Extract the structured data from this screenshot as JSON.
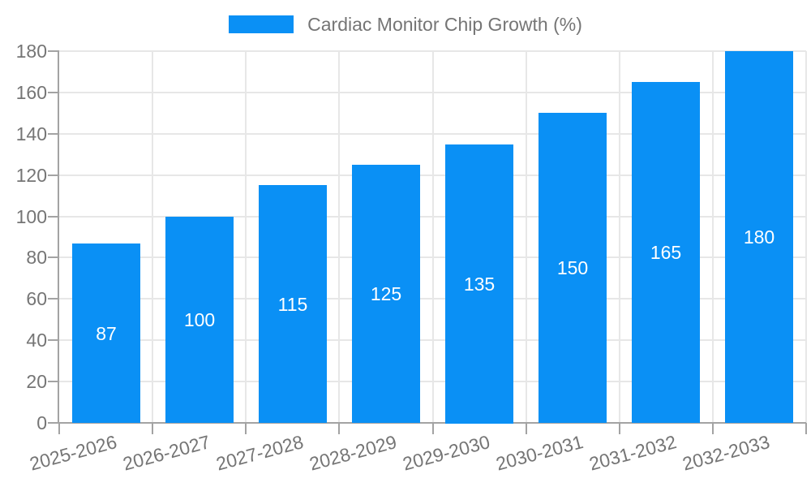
{
  "chart_data": {
    "type": "bar",
    "title": "",
    "legend_label": "Cardiac Monitor Chip Growth (%)",
    "legend_position": "top-center",
    "categories": [
      "2025-2026",
      "2026-2027",
      "2027-2028",
      "2028-2029",
      "2029-2030",
      "2030-2031",
      "2031-2032",
      "2032-2033"
    ],
    "values": [
      87,
      100,
      115,
      125,
      135,
      150,
      165,
      180
    ],
    "yticks": [
      0,
      20,
      40,
      60,
      80,
      100,
      120,
      140,
      160,
      180
    ],
    "ylim": [
      0,
      180
    ],
    "xlabel": "",
    "ylabel": "",
    "grid": true,
    "x_label_rotation_deg": -15,
    "value_labels": "inside-center",
    "colors": {
      "bar": "#0a90f5",
      "bar_value_text": "#ffffff",
      "axis_text": "#757575",
      "grid_line": "#e7e7e7",
      "axis_line": "#a3a3a3",
      "background": "#ffffff"
    }
  }
}
